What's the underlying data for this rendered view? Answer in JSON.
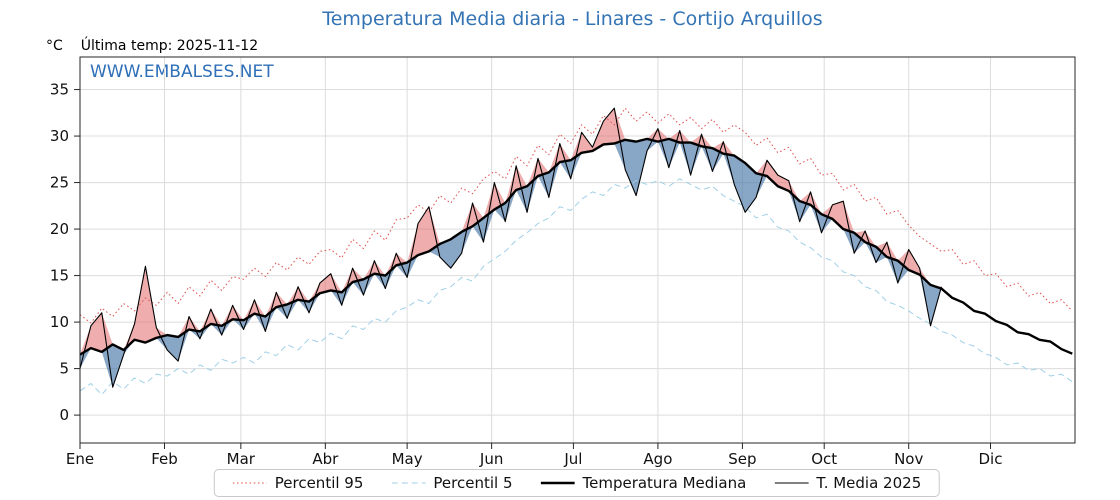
{
  "header": {
    "title": "Temperatura Media diaria - Linares - Cortijo Arquillos",
    "title_color": "#3474b4",
    "unit_label": "°C",
    "last_temp_label": "Última temp: 2025-11-12",
    "watermark": "WWW.EMBALSES.NET",
    "watermark_color": "#2e6fb7"
  },
  "chart_data": {
    "type": "line",
    "title": "Temperatura Media diaria - Linares - Cortijo Arquillos",
    "xlabel": "",
    "ylabel": "°C",
    "x_tick_labels": [
      "Ene",
      "Feb",
      "Mar",
      "Abr",
      "May",
      "Jun",
      "Jul",
      "Ago",
      "Sep",
      "Oct",
      "Nov",
      "Dic"
    ],
    "month_start_days": [
      0,
      31,
      59,
      90,
      120,
      151,
      181,
      212,
      243,
      273,
      304,
      334
    ],
    "y_ticks": [
      0,
      5,
      10,
      15,
      20,
      25,
      30,
      35
    ],
    "ylim": [
      -3,
      38.5
    ],
    "xlim": [
      0,
      365
    ],
    "grid": true,
    "legend_position": "bottom",
    "sample_step_days": 4,
    "fills": {
      "above_color": "rgba(225,105,105,0.55)",
      "below_color": "rgba(72,118,168,0.65)",
      "note": "fill between Temperatura Mediana and T. Media 2025; red where 2025 above median, blue where below"
    },
    "series": [
      {
        "name": "Percentil 95",
        "color": "#e05252",
        "dash": "dotted",
        "width": 1,
        "values": [
          10.8,
          9.9,
          11.5,
          10.6,
          12.0,
          11.2,
          12.6,
          11.8,
          13.2,
          12.0,
          13.8,
          12.8,
          14.5,
          13.4,
          14.9,
          14.6,
          15.8,
          14.9,
          16.4,
          15.6,
          17.0,
          16.2,
          17.6,
          17.8,
          16.9,
          18.9,
          17.9,
          19.8,
          18.8,
          21.0,
          21.2,
          22.6,
          21.8,
          23.6,
          22.8,
          24.4,
          23.8,
          25.4,
          26.2,
          25.4,
          27.8,
          26.8,
          29.0,
          28.0,
          30.2,
          29.2,
          31.2,
          30.2,
          32.2,
          31.2,
          33.0,
          31.6,
          32.6,
          31.4,
          32.4,
          31.2,
          32.0,
          30.8,
          31.8,
          30.4,
          31.2,
          30.4,
          29.0,
          29.8,
          28.2,
          28.8,
          27.0,
          27.6,
          25.8,
          26.0,
          24.2,
          24.8,
          23.0,
          23.4,
          21.6,
          22.0,
          20.4,
          19.2,
          18.4,
          17.6,
          17.8,
          16.2,
          16.6,
          15.0,
          15.2,
          13.8,
          14.2,
          12.8,
          13.2,
          12.0,
          12.4,
          11.2
        ]
      },
      {
        "name": "Percentil 5",
        "color": "#9fd0e8",
        "dash": "dashed",
        "width": 1,
        "values": [
          2.6,
          3.4,
          2.2,
          3.6,
          2.8,
          4.0,
          3.4,
          4.4,
          4.2,
          5.0,
          4.4,
          5.4,
          4.8,
          6.0,
          5.6,
          6.2,
          5.6,
          6.8,
          6.4,
          7.6,
          7.0,
          8.2,
          7.8,
          8.8,
          8.2,
          9.6,
          9.2,
          10.4,
          10.0,
          11.2,
          11.6,
          12.4,
          12.0,
          13.4,
          13.8,
          14.8,
          14.4,
          16.0,
          16.8,
          17.6,
          18.8,
          19.6,
          20.6,
          21.2,
          22.4,
          22.0,
          23.2,
          24.0,
          23.6,
          24.8,
          24.4,
          25.2,
          24.8,
          25.2,
          24.6,
          25.4,
          24.8,
          24.2,
          24.6,
          23.6,
          23.0,
          22.4,
          21.2,
          21.6,
          20.2,
          19.8,
          18.6,
          18.0,
          17.0,
          16.6,
          15.4,
          15.0,
          13.8,
          13.4,
          12.2,
          11.8,
          11.2,
          10.4,
          9.8,
          9.0,
          8.6,
          7.8,
          7.4,
          6.6,
          6.2,
          5.4,
          5.6,
          4.8,
          5.0,
          4.2,
          4.4,
          3.6
        ]
      },
      {
        "name": "Temperatura Mediana",
        "color": "#000000",
        "dash": "solid",
        "width": 2.4,
        "values": [
          6.5,
          7.2,
          6.8,
          7.6,
          7.0,
          8.1,
          7.8,
          8.3,
          8.6,
          8.4,
          9.2,
          9.0,
          9.8,
          9.6,
          10.3,
          10.2,
          10.9,
          10.6,
          11.6,
          11.9,
          12.4,
          12.2,
          13.1,
          13.4,
          13.2,
          14.3,
          14.6,
          15.2,
          15.0,
          16.1,
          16.4,
          17.2,
          17.6,
          18.4,
          18.9,
          19.7,
          20.3,
          21.2,
          22.1,
          22.8,
          24.2,
          24.6,
          25.7,
          26.1,
          27.2,
          27.4,
          28.2,
          28.4,
          29.1,
          29.2,
          29.6,
          29.4,
          29.7,
          29.4,
          29.7,
          29.3,
          29.3,
          28.9,
          28.7,
          28.1,
          27.9,
          27.1,
          26.0,
          25.7,
          24.6,
          24.1,
          23.0,
          22.6,
          21.6,
          21.1,
          20.0,
          19.6,
          18.6,
          18.1,
          17.0,
          16.6,
          15.6,
          15.1,
          14.0,
          13.6,
          12.6,
          12.1,
          11.2,
          10.9,
          10.1,
          9.7,
          8.9,
          8.7,
          8.1,
          7.9,
          7.1,
          6.6
        ]
      },
      {
        "name": "T. Media 2025",
        "color": "#000000",
        "dash": "solid",
        "width": 1.1,
        "ends_day": 316,
        "values": [
          5.0,
          9.6,
          11.0,
          3.0,
          6.5,
          9.8,
          16.0,
          9.4,
          7.0,
          5.8,
          10.6,
          8.2,
          11.4,
          8.6,
          11.8,
          9.2,
          12.4,
          9.0,
          13.2,
          10.4,
          13.8,
          11.0,
          14.2,
          15.2,
          11.8,
          15.8,
          12.9,
          16.6,
          13.6,
          17.4,
          14.8,
          20.6,
          22.4,
          17.0,
          15.8,
          17.4,
          22.8,
          18.6,
          25.0,
          20.8,
          26.8,
          21.8,
          27.6,
          23.4,
          29.2,
          25.4,
          30.4,
          28.8,
          31.6,
          33.0,
          26.4,
          23.6,
          28.4,
          30.8,
          26.6,
          30.6,
          25.8,
          30.2,
          26.2,
          29.4,
          24.8,
          21.8,
          23.4,
          27.4,
          25.8,
          25.2,
          20.8,
          24.0,
          19.6,
          22.6,
          23.0,
          17.4,
          19.8,
          16.4,
          18.6,
          14.2,
          17.8,
          15.8,
          9.6,
          13.8
        ]
      }
    ],
    "legend": [
      "Percentil 95",
      "Percentil 5",
      "Temperatura Mediana",
      "T. Media 2025"
    ]
  }
}
